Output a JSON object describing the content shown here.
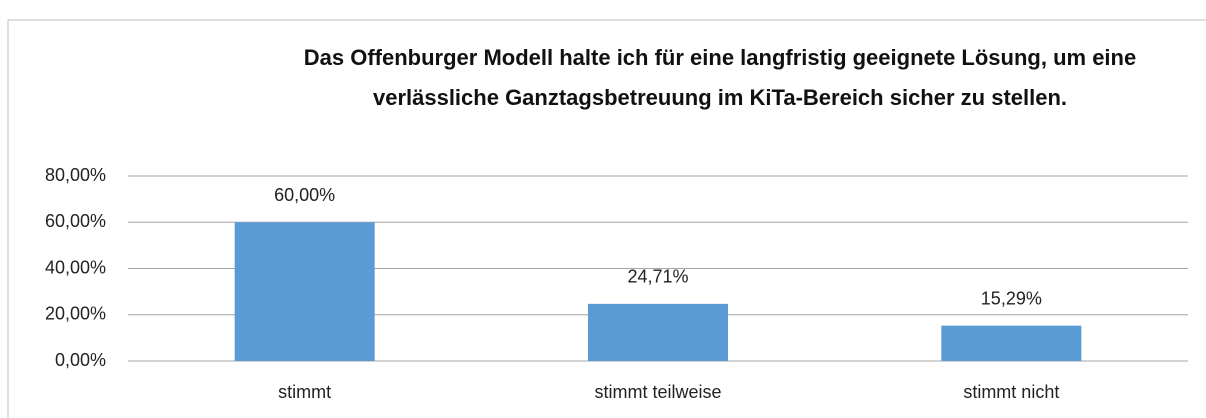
{
  "chart_data": {
    "type": "bar",
    "title": "Das Offenburger Modell halte ich für eine langfristig geeignete Lösung, um eine verlässliche Ganztagsbetreuung im KiTa-Bereich sicher zu stellen.",
    "categories": [
      "stimmt",
      "stimmt teilweise",
      "stimmt nicht"
    ],
    "values": [
      60,
      24.71,
      15.29
    ],
    "value_labels": [
      "60,00%",
      "24,71%",
      "15,29%"
    ],
    "color": "#5b9bd5",
    "ylim": [
      0,
      80
    ],
    "yticks": [
      {
        "value": 0,
        "label": "0,00%"
      },
      {
        "value": 20,
        "label": "20,00%"
      },
      {
        "value": 40,
        "label": "40,00%"
      },
      {
        "value": 60,
        "label": "60,00%"
      },
      {
        "value": 80,
        "label": "80,00%"
      }
    ],
    "grid": true
  }
}
